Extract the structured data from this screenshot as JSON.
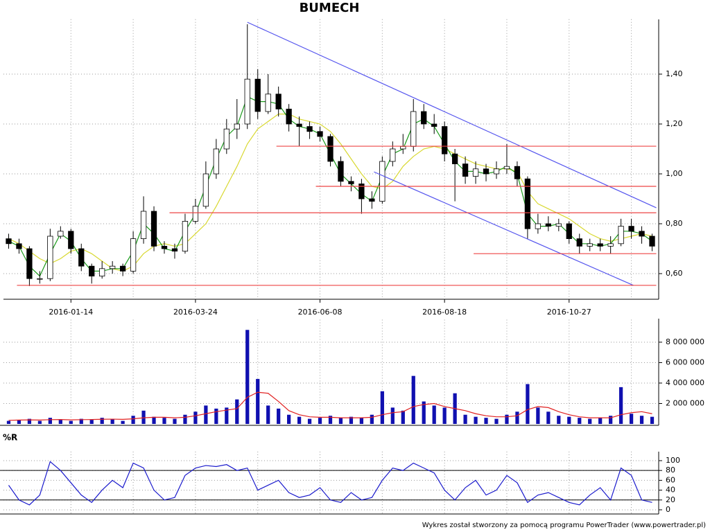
{
  "chart_data": [
    {
      "type": "candlestick",
      "title": "BUMECH",
      "categories": [
        null,
        null,
        null,
        null,
        null,
        null,
        "2016-01-14",
        null,
        null,
        null,
        null,
        null,
        null,
        null,
        null,
        null,
        null,
        null,
        "2016-03-24",
        null,
        null,
        null,
        null,
        null,
        null,
        null,
        null,
        null,
        null,
        null,
        "2016-06-08",
        null,
        null,
        null,
        null,
        null,
        null,
        null,
        null,
        null,
        null,
        null,
        "2016-08-18",
        null,
        null,
        null,
        null,
        null,
        null,
        null,
        null,
        null,
        null,
        null,
        "2016-10-27",
        null,
        null,
        null,
        null,
        null,
        null,
        null,
        null
      ],
      "open": [
        0.74,
        0.72,
        0.7,
        0.58,
        0.58,
        0.75,
        0.77,
        0.7,
        0.63,
        0.59,
        0.62,
        0.63,
        0.61,
        0.74,
        0.85,
        0.71,
        0.7,
        0.69,
        0.81,
        0.87,
        1.0,
        1.1,
        1.18,
        1.2,
        1.38,
        1.25,
        1.32,
        1.26,
        1.2,
        1.19,
        1.17,
        1.15,
        1.05,
        0.97,
        0.96,
        0.9,
        0.89,
        1.05,
        1.1,
        1.11,
        1.25,
        1.2,
        1.19,
        1.08,
        1.04,
        0.99,
        1.02,
        1.0,
        1.02,
        1.03,
        0.98,
        0.78,
        0.8,
        0.79,
        0.8,
        0.74,
        0.71,
        0.72,
        0.71,
        0.72,
        0.79,
        0.77,
        0.75
      ],
      "high": [
        0.76,
        0.74,
        0.71,
        0.61,
        0.78,
        0.79,
        0.78,
        0.72,
        0.64,
        0.65,
        0.65,
        0.64,
        0.77,
        0.91,
        0.87,
        0.73,
        0.72,
        0.84,
        0.9,
        1.05,
        1.14,
        1.22,
        1.3,
        1.6,
        1.42,
        1.4,
        1.35,
        1.28,
        1.23,
        1.21,
        1.19,
        1.16,
        1.07,
        0.99,
        0.98,
        0.93,
        1.07,
        1.13,
        1.16,
        1.3,
        1.28,
        1.24,
        1.21,
        1.1,
        1.07,
        1.05,
        1.04,
        1.05,
        1.12,
        1.05,
        0.99,
        0.84,
        0.83,
        0.82,
        0.81,
        0.76,
        0.74,
        0.74,
        0.75,
        0.82,
        0.82,
        0.79,
        0.76
      ],
      "low": [
        0.7,
        0.68,
        0.55,
        0.56,
        0.57,
        0.74,
        0.68,
        0.61,
        0.56,
        0.58,
        0.6,
        0.59,
        0.6,
        0.72,
        0.69,
        0.68,
        0.66,
        0.68,
        0.8,
        0.86,
        0.98,
        1.08,
        1.14,
        1.18,
        1.22,
        1.24,
        1.23,
        1.17,
        1.11,
        1.14,
        1.13,
        1.03,
        0.95,
        0.93,
        0.84,
        0.86,
        0.88,
        1.03,
        1.08,
        1.09,
        1.18,
        1.16,
        1.05,
        0.89,
        0.96,
        0.96,
        0.97,
        0.98,
        1.0,
        0.95,
        0.74,
        0.76,
        0.77,
        0.77,
        0.72,
        0.68,
        0.69,
        0.69,
        0.68,
        0.71,
        0.74,
        0.72,
        0.69
      ],
      "close": [
        0.72,
        0.7,
        0.58,
        0.58,
        0.75,
        0.77,
        0.7,
        0.63,
        0.59,
        0.62,
        0.63,
        0.61,
        0.74,
        0.85,
        0.71,
        0.7,
        0.69,
        0.81,
        0.87,
        1.0,
        1.1,
        1.18,
        1.2,
        1.38,
        1.25,
        1.32,
        1.26,
        1.2,
        1.19,
        1.17,
        1.15,
        1.05,
        0.97,
        0.96,
        0.9,
        0.89,
        1.05,
        1.1,
        1.11,
        1.25,
        1.2,
        1.19,
        1.08,
        1.04,
        0.99,
        1.02,
        1.0,
        1.02,
        1.03,
        0.98,
        0.78,
        0.8,
        0.79,
        0.8,
        0.74,
        0.71,
        0.72,
        0.71,
        0.72,
        0.79,
        0.77,
        0.75,
        0.71
      ],
      "lines": [
        {
          "color": "#d8d830",
          "values": [
            0.74,
            0.72,
            0.69,
            0.66,
            0.64,
            0.66,
            0.69,
            0.7,
            0.68,
            0.65,
            0.62,
            0.61,
            0.63,
            0.68,
            0.71,
            0.72,
            0.71,
            0.72,
            0.76,
            0.8,
            0.87,
            0.95,
            1.03,
            1.12,
            1.18,
            1.21,
            1.24,
            1.24,
            1.22,
            1.21,
            1.2,
            1.17,
            1.12,
            1.06,
            1.0,
            0.95,
            0.94,
            0.97,
            1.03,
            1.07,
            1.1,
            1.11,
            1.1,
            1.08,
            1.06,
            1.04,
            1.03,
            1.02,
            1.02,
            1.01,
            0.93,
            0.88,
            0.86,
            0.84,
            0.82,
            0.79,
            0.76,
            0.74,
            0.73,
            0.74,
            0.75,
            0.76,
            0.75
          ]
        },
        {
          "color": "#1a9a1a",
          "values": [
            0.73,
            0.71,
            0.63,
            0.59,
            0.68,
            0.76,
            0.73,
            0.66,
            0.61,
            0.61,
            0.62,
            0.62,
            0.69,
            0.8,
            0.76,
            0.7,
            0.69,
            0.77,
            0.84,
            0.95,
            1.06,
            1.15,
            1.19,
            1.31,
            1.29,
            1.29,
            1.28,
            1.22,
            1.19,
            1.18,
            1.16,
            1.08,
            1.0,
            0.96,
            0.92,
            0.89,
            0.99,
            1.08,
            1.1,
            1.2,
            1.22,
            1.19,
            1.12,
            1.05,
            1.01,
            1.01,
            1.0,
            1.01,
            1.03,
            1.0,
            0.84,
            0.79,
            0.79,
            0.8,
            0.76,
            0.72,
            0.72,
            0.71,
            0.72,
            0.77,
            0.77,
            0.76,
            0.73
          ]
        }
      ],
      "trendlines": [
        {
          "color": "#5555ee",
          "from": [
            23,
            1.608
          ],
          "to": [
            62.4,
            0.864
          ]
        },
        {
          "color": "#5555ee",
          "from": [
            35.2,
            1.008
          ],
          "to": [
            60.2,
            0.553
          ]
        },
        {
          "color": "#ee4444",
          "from": [
            25.8,
            1.111
          ],
          "to": [
            62.4,
            1.111
          ]
        },
        {
          "color": "#ee4444",
          "from": [
            29.6,
            0.95
          ],
          "to": [
            62.4,
            0.95
          ]
        },
        {
          "color": "#ee4444",
          "from": [
            15.5,
            0.844
          ],
          "to": [
            62.4,
            0.844
          ]
        },
        {
          "color": "#ee4444",
          "from": [
            44.8,
            0.68
          ],
          "to": [
            62.4,
            0.68
          ]
        },
        {
          "color": "#ee4444",
          "from": [
            0.8,
            0.553
          ],
          "to": [
            62.4,
            0.553
          ]
        }
      ],
      "ylim": [
        0.5,
        1.62
      ],
      "yticks": [
        {
          "value": 0.6,
          "label": "0,60"
        },
        {
          "value": 0.8,
          "label": "0,80"
        },
        {
          "value": 1.0,
          "label": "1,00"
        },
        {
          "value": 1.2,
          "label": "1,20"
        },
        {
          "value": 1.4,
          "label": "1,40"
        }
      ],
      "grid": true
    },
    {
      "type": "bar",
      "color": "#1010b0",
      "values": [
        300000,
        400000,
        500000,
        300000,
        600000,
        400000,
        300000,
        500000,
        400000,
        600000,
        500000,
        300000,
        800000,
        1300000,
        700000,
        600000,
        500000,
        900000,
        1200000,
        1800000,
        1500000,
        1600000,
        2400000,
        9200000,
        4400000,
        1800000,
        1500000,
        900000,
        700000,
        500000,
        600000,
        800000,
        600000,
        700000,
        600000,
        900000,
        3200000,
        1600000,
        1300000,
        4700000,
        2200000,
        1800000,
        1600000,
        3000000,
        900000,
        700000,
        600000,
        500000,
        900000,
        1200000,
        3900000,
        1600000,
        1200000,
        800000,
        700000,
        600000,
        500000,
        600000,
        800000,
        3600000,
        1000000,
        800000,
        700000
      ],
      "lines": [
        {
          "color": "#e02020",
          "values": [
            350000,
            380000,
            400000,
            380000,
            420000,
            430000,
            400000,
            420000,
            430000,
            460000,
            470000,
            450000,
            500000,
            600000,
            650000,
            650000,
            600000,
            650000,
            800000,
            1000000,
            1200000,
            1350000,
            1500000,
            2600000,
            3100000,
            3000000,
            2200000,
            1300000,
            900000,
            700000,
            650000,
            650000,
            600000,
            600000,
            600000,
            650000,
            900000,
            1100000,
            1200000,
            1700000,
            1900000,
            2000000,
            1700000,
            1500000,
            1300000,
            1000000,
            800000,
            700000,
            700000,
            800000,
            1400000,
            1700000,
            1600000,
            1200000,
            900000,
            700000,
            600000,
            600000,
            600000,
            900000,
            1100000,
            1200000,
            1000000
          ]
        }
      ],
      "ylim": [
        0,
        10200000
      ],
      "yticks": [
        {
          "value": 2000000,
          "label": "2 000 000"
        },
        {
          "value": 4000000,
          "label": "4 000 000"
        },
        {
          "value": 6000000,
          "label": "6 000 000"
        },
        {
          "value": 8000000,
          "label": "8 000 000"
        }
      ],
      "grid": true
    },
    {
      "type": "line",
      "title": "%R",
      "color": "#1a1acc",
      "values": [
        50,
        20,
        10,
        30,
        98,
        80,
        55,
        30,
        15,
        40,
        60,
        45,
        95,
        85,
        40,
        20,
        25,
        70,
        85,
        90,
        88,
        92,
        80,
        85,
        40,
        50,
        60,
        35,
        25,
        30,
        45,
        20,
        15,
        35,
        20,
        25,
        60,
        85,
        80,
        95,
        85,
        75,
        40,
        20,
        45,
        60,
        30,
        40,
        70,
        55,
        15,
        30,
        35,
        25,
        15,
        10,
        30,
        45,
        20,
        85,
        70,
        20,
        15
      ],
      "reference_lines": [
        20,
        80
      ],
      "ylim": [
        -8.5,
        118.3
      ],
      "yticks": [
        0,
        20,
        40,
        60,
        80,
        100
      ],
      "grid": true
    }
  ],
  "footer": "Wykres został stworzony za pomocą programu PowerTrader (www.powertrader.pl)"
}
